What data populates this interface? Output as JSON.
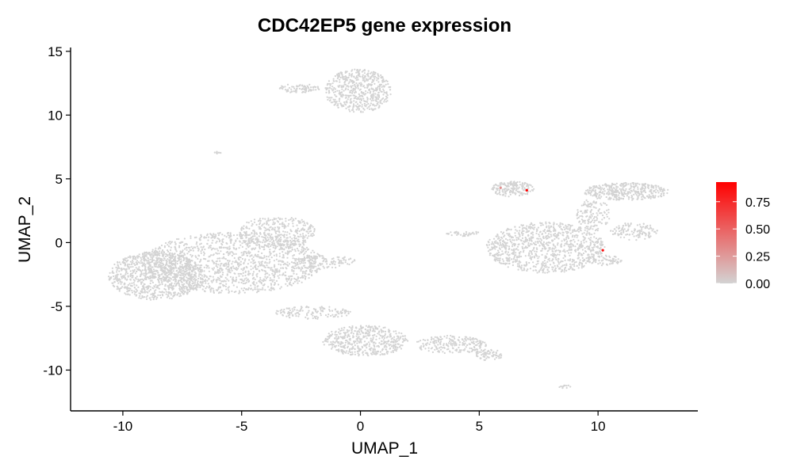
{
  "chart_data": {
    "type": "scatter",
    "title": "CDC42EP5 gene expression",
    "xlabel": "UMAP_1",
    "ylabel": "UMAP_2",
    "xlim": [
      -12.2,
      14.2
    ],
    "ylim": [
      -13.2,
      15.3
    ],
    "x_ticks": [
      -10,
      -5,
      0,
      5,
      10
    ],
    "y_ticks": [
      15,
      10,
      5,
      0,
      -5,
      -10
    ],
    "x_tick_labels": [
      "-10",
      "-5",
      "0",
      "5",
      "10"
    ],
    "y_tick_labels": [
      "15",
      "10",
      "5",
      "0",
      "-5",
      "-10"
    ],
    "grid": false,
    "legend": {
      "placement": "right",
      "type": "colorbar",
      "range": [
        0,
        0.93
      ],
      "ticks": [
        0.0,
        0.25,
        0.5,
        0.75
      ],
      "tick_labels": [
        "0.00",
        "0.25",
        "0.50",
        "0.75"
      ],
      "low_color": "#d3d3d3",
      "high_color": "#ff0000"
    },
    "point_color": "#d3d3d3",
    "clusters": [
      {
        "cx": -5.4,
        "cy": -1.6,
        "rx": 3.8,
        "ry": 2.4,
        "n": 1400
      },
      {
        "cx": -8.6,
        "cy": -2.6,
        "rx": 2.0,
        "ry": 1.9,
        "n": 900
      },
      {
        "cx": -3.5,
        "cy": 0.8,
        "rx": 1.6,
        "ry": 1.3,
        "n": 350
      },
      {
        "cx": -1.5,
        "cy": -1.5,
        "rx": 1.3,
        "ry": 0.5,
        "n": 120
      },
      {
        "cx": -0.1,
        "cy": 11.9,
        "rx": 1.4,
        "ry": 1.7,
        "n": 550
      },
      {
        "cx": -2.6,
        "cy": 12.1,
        "rx": 0.9,
        "ry": 0.35,
        "n": 80
      },
      {
        "cx": -6.0,
        "cy": 7.0,
        "rx": 0.15,
        "ry": 0.15,
        "n": 8
      },
      {
        "cx": 0.2,
        "cy": -7.7,
        "rx": 1.8,
        "ry": 1.2,
        "n": 500
      },
      {
        "cx": -2.0,
        "cy": -5.5,
        "rx": 1.6,
        "ry": 0.5,
        "n": 140
      },
      {
        "cx": 3.8,
        "cy": -8.0,
        "rx": 1.5,
        "ry": 0.7,
        "n": 220
      },
      {
        "cx": 5.4,
        "cy": -8.8,
        "rx": 0.6,
        "ry": 0.45,
        "n": 70
      },
      {
        "cx": 7.8,
        "cy": -0.4,
        "rx": 2.5,
        "ry": 2.0,
        "n": 950
      },
      {
        "cx": 6.4,
        "cy": 4.2,
        "rx": 0.9,
        "ry": 0.6,
        "n": 170
      },
      {
        "cx": 11.2,
        "cy": 4.0,
        "rx": 1.8,
        "ry": 0.7,
        "n": 380
      },
      {
        "cx": 9.8,
        "cy": 2.2,
        "rx": 0.7,
        "ry": 1.3,
        "n": 140
      },
      {
        "cx": 11.5,
        "cy": 0.9,
        "rx": 1.0,
        "ry": 0.7,
        "n": 120
      },
      {
        "cx": 10.2,
        "cy": -1.4,
        "rx": 0.8,
        "ry": 0.4,
        "n": 70
      },
      {
        "cx": 4.3,
        "cy": 0.7,
        "rx": 0.8,
        "ry": 0.2,
        "n": 40
      },
      {
        "cx": 8.6,
        "cy": -11.3,
        "rx": 0.25,
        "ry": 0.12,
        "n": 12
      }
    ],
    "expressing_cells": [
      {
        "x": 7.0,
        "y": 4.1,
        "value": 0.93
      },
      {
        "x": 10.2,
        "y": -0.6,
        "value": 0.85
      },
      {
        "x": 5.9,
        "y": 4.3,
        "value": 0.3
      }
    ]
  }
}
